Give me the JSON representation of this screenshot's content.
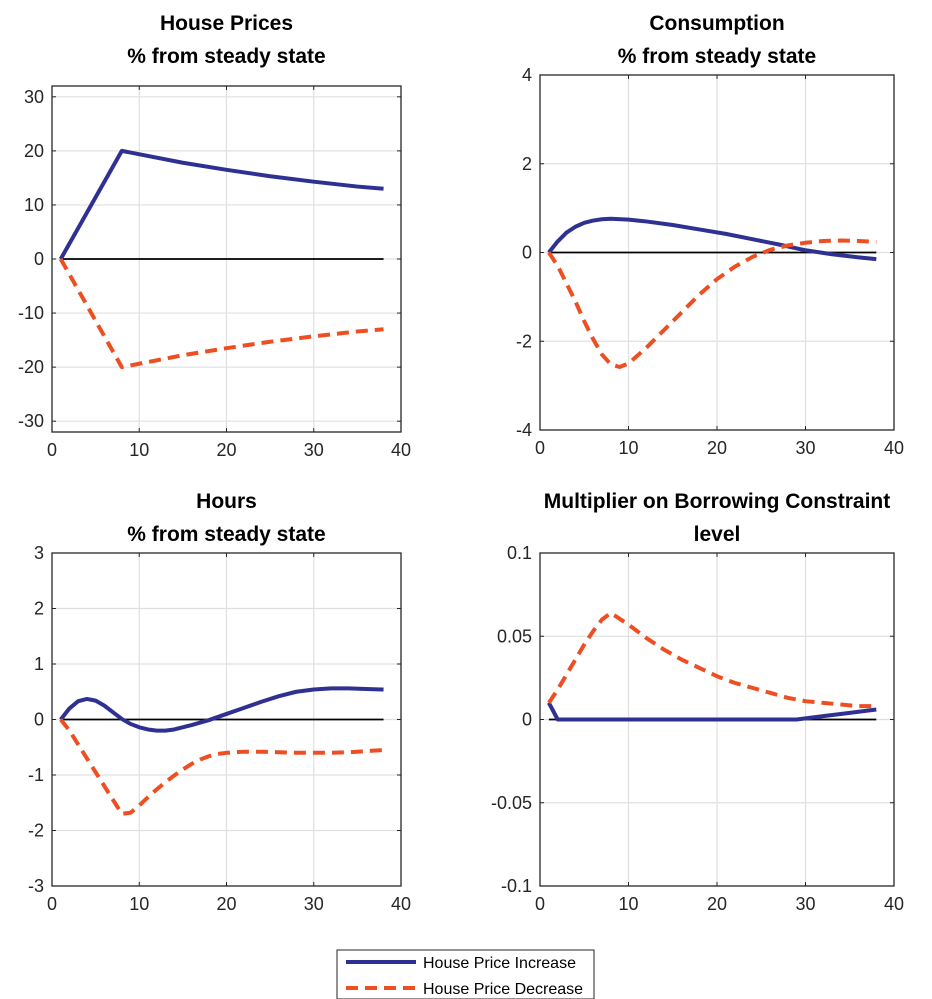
{
  "chart_data": [
    {
      "type": "line",
      "title": "House Prices",
      "subtitle": "% from steady state",
      "xlim": [
        0,
        40
      ],
      "ylim": [
        -32,
        32
      ],
      "xticks": [
        0,
        10,
        20,
        30,
        40
      ],
      "yticks": [
        -30,
        -20,
        -10,
        0,
        10,
        20,
        30
      ],
      "grid": true,
      "series": [
        {
          "name": "House Price Increase",
          "x": [
            1,
            8,
            15,
            20,
            25,
            30,
            35,
            38
          ],
          "y": [
            0,
            20,
            17.8,
            16.5,
            15.3,
            14.3,
            13.4,
            13
          ]
        },
        {
          "name": "House Price Decrease",
          "x": [
            1,
            8,
            15,
            20,
            25,
            30,
            35,
            38
          ],
          "y": [
            0,
            -20,
            -17.8,
            -16.5,
            -15.3,
            -14.3,
            -13.4,
            -13
          ]
        }
      ]
    },
    {
      "type": "line",
      "title": "Consumption",
      "subtitle": "% from steady state",
      "xlim": [
        0,
        40
      ],
      "ylim": [
        -4,
        4
      ],
      "xticks": [
        0,
        10,
        20,
        30,
        40
      ],
      "yticks": [
        -4,
        -2,
        0,
        2,
        4
      ],
      "grid": true,
      "series": [
        {
          "name": "House Price Increase",
          "x": [
            1,
            2,
            3,
            4,
            5,
            6,
            7,
            8,
            10,
            12,
            15,
            18,
            21,
            24,
            27,
            30,
            33,
            36,
            38
          ],
          "y": [
            0,
            0.25,
            0.45,
            0.58,
            0.67,
            0.72,
            0.75,
            0.76,
            0.74,
            0.7,
            0.62,
            0.52,
            0.42,
            0.3,
            0.18,
            0.05,
            -0.04,
            -0.11,
            -0.15
          ]
        },
        {
          "name": "House Price Decrease",
          "x": [
            1,
            2,
            3,
            4,
            5,
            6,
            7,
            8,
            9,
            10,
            12,
            14,
            16,
            18,
            20,
            22,
            24,
            26,
            28,
            30,
            32,
            34,
            36,
            38
          ],
          "y": [
            0,
            -0.3,
            -0.7,
            -1.1,
            -1.55,
            -1.95,
            -2.3,
            -2.52,
            -2.58,
            -2.5,
            -2.15,
            -1.75,
            -1.35,
            -0.95,
            -0.6,
            -0.32,
            -0.1,
            0.06,
            0.16,
            0.22,
            0.26,
            0.27,
            0.26,
            0.24
          ]
        }
      ]
    },
    {
      "type": "line",
      "title": "Hours",
      "subtitle": "% from steady state",
      "xlim": [
        0,
        40
      ],
      "ylim": [
        -3,
        3
      ],
      "xticks": [
        0,
        10,
        20,
        30,
        40
      ],
      "yticks": [
        -3,
        -2,
        -1,
        0,
        1,
        2,
        3
      ],
      "grid": true,
      "series": [
        {
          "name": "House Price Increase",
          "x": [
            1,
            2,
            3,
            4,
            5,
            6,
            7,
            8,
            9,
            10,
            11,
            12,
            13,
            14,
            16,
            18,
            20,
            22,
            24,
            26,
            28,
            30,
            32,
            34,
            36,
            38
          ],
          "y": [
            0,
            0.2,
            0.33,
            0.37,
            0.34,
            0.25,
            0.13,
            0.01,
            -0.08,
            -0.14,
            -0.18,
            -0.2,
            -0.2,
            -0.18,
            -0.1,
            -0.01,
            0.1,
            0.21,
            0.32,
            0.42,
            0.5,
            0.54,
            0.56,
            0.56,
            0.55,
            0.54
          ]
        },
        {
          "name": "House Price Decrease",
          "x": [
            1,
            2,
            3,
            4,
            5,
            6,
            7,
            8,
            9,
            10,
            11,
            12,
            13,
            14,
            15,
            16,
            17,
            18,
            19,
            20,
            22,
            24,
            26,
            28,
            30,
            32,
            34,
            36,
            38
          ],
          "y": [
            0,
            -0.2,
            -0.45,
            -0.7,
            -0.95,
            -1.2,
            -1.45,
            -1.7,
            -1.68,
            -1.55,
            -1.4,
            -1.26,
            -1.13,
            -1.01,
            -0.9,
            -0.8,
            -0.72,
            -0.66,
            -0.62,
            -0.6,
            -0.58,
            -0.58,
            -0.59,
            -0.6,
            -0.6,
            -0.6,
            -0.59,
            -0.57,
            -0.55
          ]
        }
      ]
    },
    {
      "type": "line",
      "title": "Multiplier on Borrowing Constraint",
      "subtitle": "level",
      "xlim": [
        0,
        40
      ],
      "ylim": [
        -0.1,
        0.1
      ],
      "xticks": [
        0,
        10,
        20,
        30,
        40
      ],
      "yticks": [
        -0.1,
        -0.05,
        0,
        0.05,
        0.1
      ],
      "ytick_labels": [
        "-0.1",
        "-0.05",
        "0",
        "0.05",
        "0.1"
      ],
      "grid": true,
      "series": [
        {
          "name": "House Price Increase",
          "x": [
            1,
            2,
            5,
            10,
            15,
            20,
            25,
            29,
            32,
            35,
            38
          ],
          "y": [
            0.01,
            0,
            0,
            0,
            0,
            0,
            0,
            0,
            0.002,
            0.004,
            0.006
          ]
        },
        {
          "name": "House Price Decrease",
          "x": [
            1,
            2,
            3,
            4,
            5,
            6,
            7,
            8,
            10,
            12,
            14,
            16,
            18,
            20,
            22,
            24,
            26,
            28,
            30,
            32,
            34,
            36,
            38
          ],
          "y": [
            0.01,
            0.018,
            0.027,
            0.036,
            0.045,
            0.053,
            0.06,
            0.064,
            0.057,
            0.049,
            0.042,
            0.036,
            0.031,
            0.026,
            0.022,
            0.019,
            0.016,
            0.013,
            0.011,
            0.01,
            0.009,
            0.008,
            0.008
          ]
        }
      ]
    }
  ],
  "legend": {
    "placement": "bottom-center",
    "items": [
      {
        "label": "House Price Increase",
        "color": "#2e3192",
        "style": "solid"
      },
      {
        "label": "House Price Decrease",
        "color": "#ed4f23",
        "style": "dashed"
      }
    ]
  },
  "colors": {
    "increase": "#2e3192",
    "decrease": "#ed4f23",
    "zero_line": "#000000",
    "grid": "#e0e0e0",
    "axes": "#262626"
  }
}
